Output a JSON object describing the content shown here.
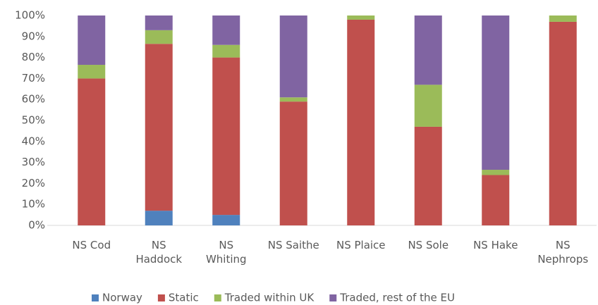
{
  "chart_data": {
    "type": "bar",
    "stacked": true,
    "categories": [
      "NS Cod",
      "NS\nHaddock",
      "NS\nWhiting",
      "NS Saithe",
      "NS Plaice",
      "NS Sole",
      "NS Hake",
      "NS\nNephrops"
    ],
    "series": [
      {
        "name": "Norway",
        "color": "#4f81bd",
        "values": [
          0,
          7,
          5,
          0,
          0,
          0,
          0,
          0
        ]
      },
      {
        "name": "Static",
        "color": "#c0504d",
        "values": [
          70,
          79.5,
          75,
          59,
          98,
          47,
          24,
          97
        ]
      },
      {
        "name": "Traded within UK",
        "color": "#9bbb59",
        "values": [
          6.5,
          6.5,
          6,
          2,
          2,
          20,
          2.5,
          3
        ]
      },
      {
        "name": "Traded, rest of the EU",
        "color": "#8064a2",
        "values": [
          23.5,
          7,
          14,
          39,
          0,
          33,
          73.5,
          0
        ]
      }
    ],
    "ylim": [
      0,
      100
    ],
    "yticks": [
      {
        "value": 0,
        "label": "0%"
      },
      {
        "value": 10,
        "label": "10%"
      },
      {
        "value": 20,
        "label": "20%"
      },
      {
        "value": 30,
        "label": "30%"
      },
      {
        "value": 40,
        "label": "40%"
      },
      {
        "value": 50,
        "label": "50%"
      },
      {
        "value": 60,
        "label": "60%"
      },
      {
        "value": 70,
        "label": "70%"
      },
      {
        "value": 80,
        "label": "80%"
      },
      {
        "value": 90,
        "label": "90%"
      },
      {
        "value": 100,
        "label": "100%"
      }
    ],
    "grid": false,
    "legend": "bottom"
  }
}
